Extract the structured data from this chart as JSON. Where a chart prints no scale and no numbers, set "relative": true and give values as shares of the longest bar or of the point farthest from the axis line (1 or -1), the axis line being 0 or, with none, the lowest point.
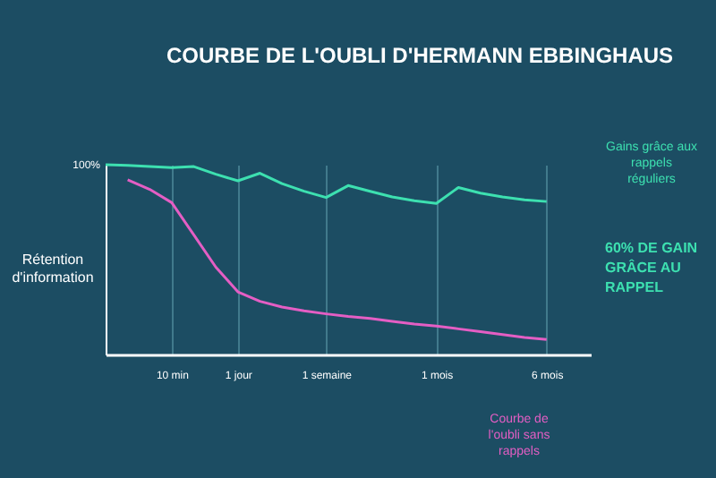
{
  "chart_data": {
    "type": "line",
    "title": "COURBE DE L'OUBLI D'HERMANN EBBINGHAUS",
    "ylabel": "Rétention d'information",
    "relative": true,
    "categories": [
      null,
      null,
      null,
      "10 min",
      null,
      null,
      "1 jour",
      null,
      null,
      null,
      "1 semaine",
      null,
      null,
      null,
      null,
      "1 mois",
      null,
      null,
      null,
      null,
      "6 mois",
      null,
      null
    ],
    "grid": "x",
    "legend": false,
    "marker": "none",
    "line_style": "solid",
    "series": [
      {
        "name": "Gains grâce aux rappels réguliers",
        "color": "#3de0b0",
        "values": [
          1.0,
          0.996,
          0.99,
          0.985,
          0.99,
          0.95,
          0.915,
          0.955,
          0.9,
          0.86,
          0.827,
          0.89,
          0.86,
          0.83,
          0.81,
          0.796,
          0.88,
          0.85,
          0.83,
          0.815,
          0.806,
          null,
          null
        ]
      },
      {
        "name": "Courbe de l'oubli sans rappels",
        "color": "#e45ec4",
        "values": [
          null,
          0.92,
          0.87,
          0.8,
          0.63,
          0.46,
          0.33,
          0.28,
          0.25,
          0.23,
          0.214,
          0.2,
          0.19,
          0.175,
          0.16,
          0.15,
          0.135,
          0.12,
          0.105,
          0.09,
          0.079,
          null,
          null
        ]
      }
    ],
    "annotations": [
      "100%",
      "60% DE GAIN GRÂCE AU RAPPEL"
    ]
  }
}
